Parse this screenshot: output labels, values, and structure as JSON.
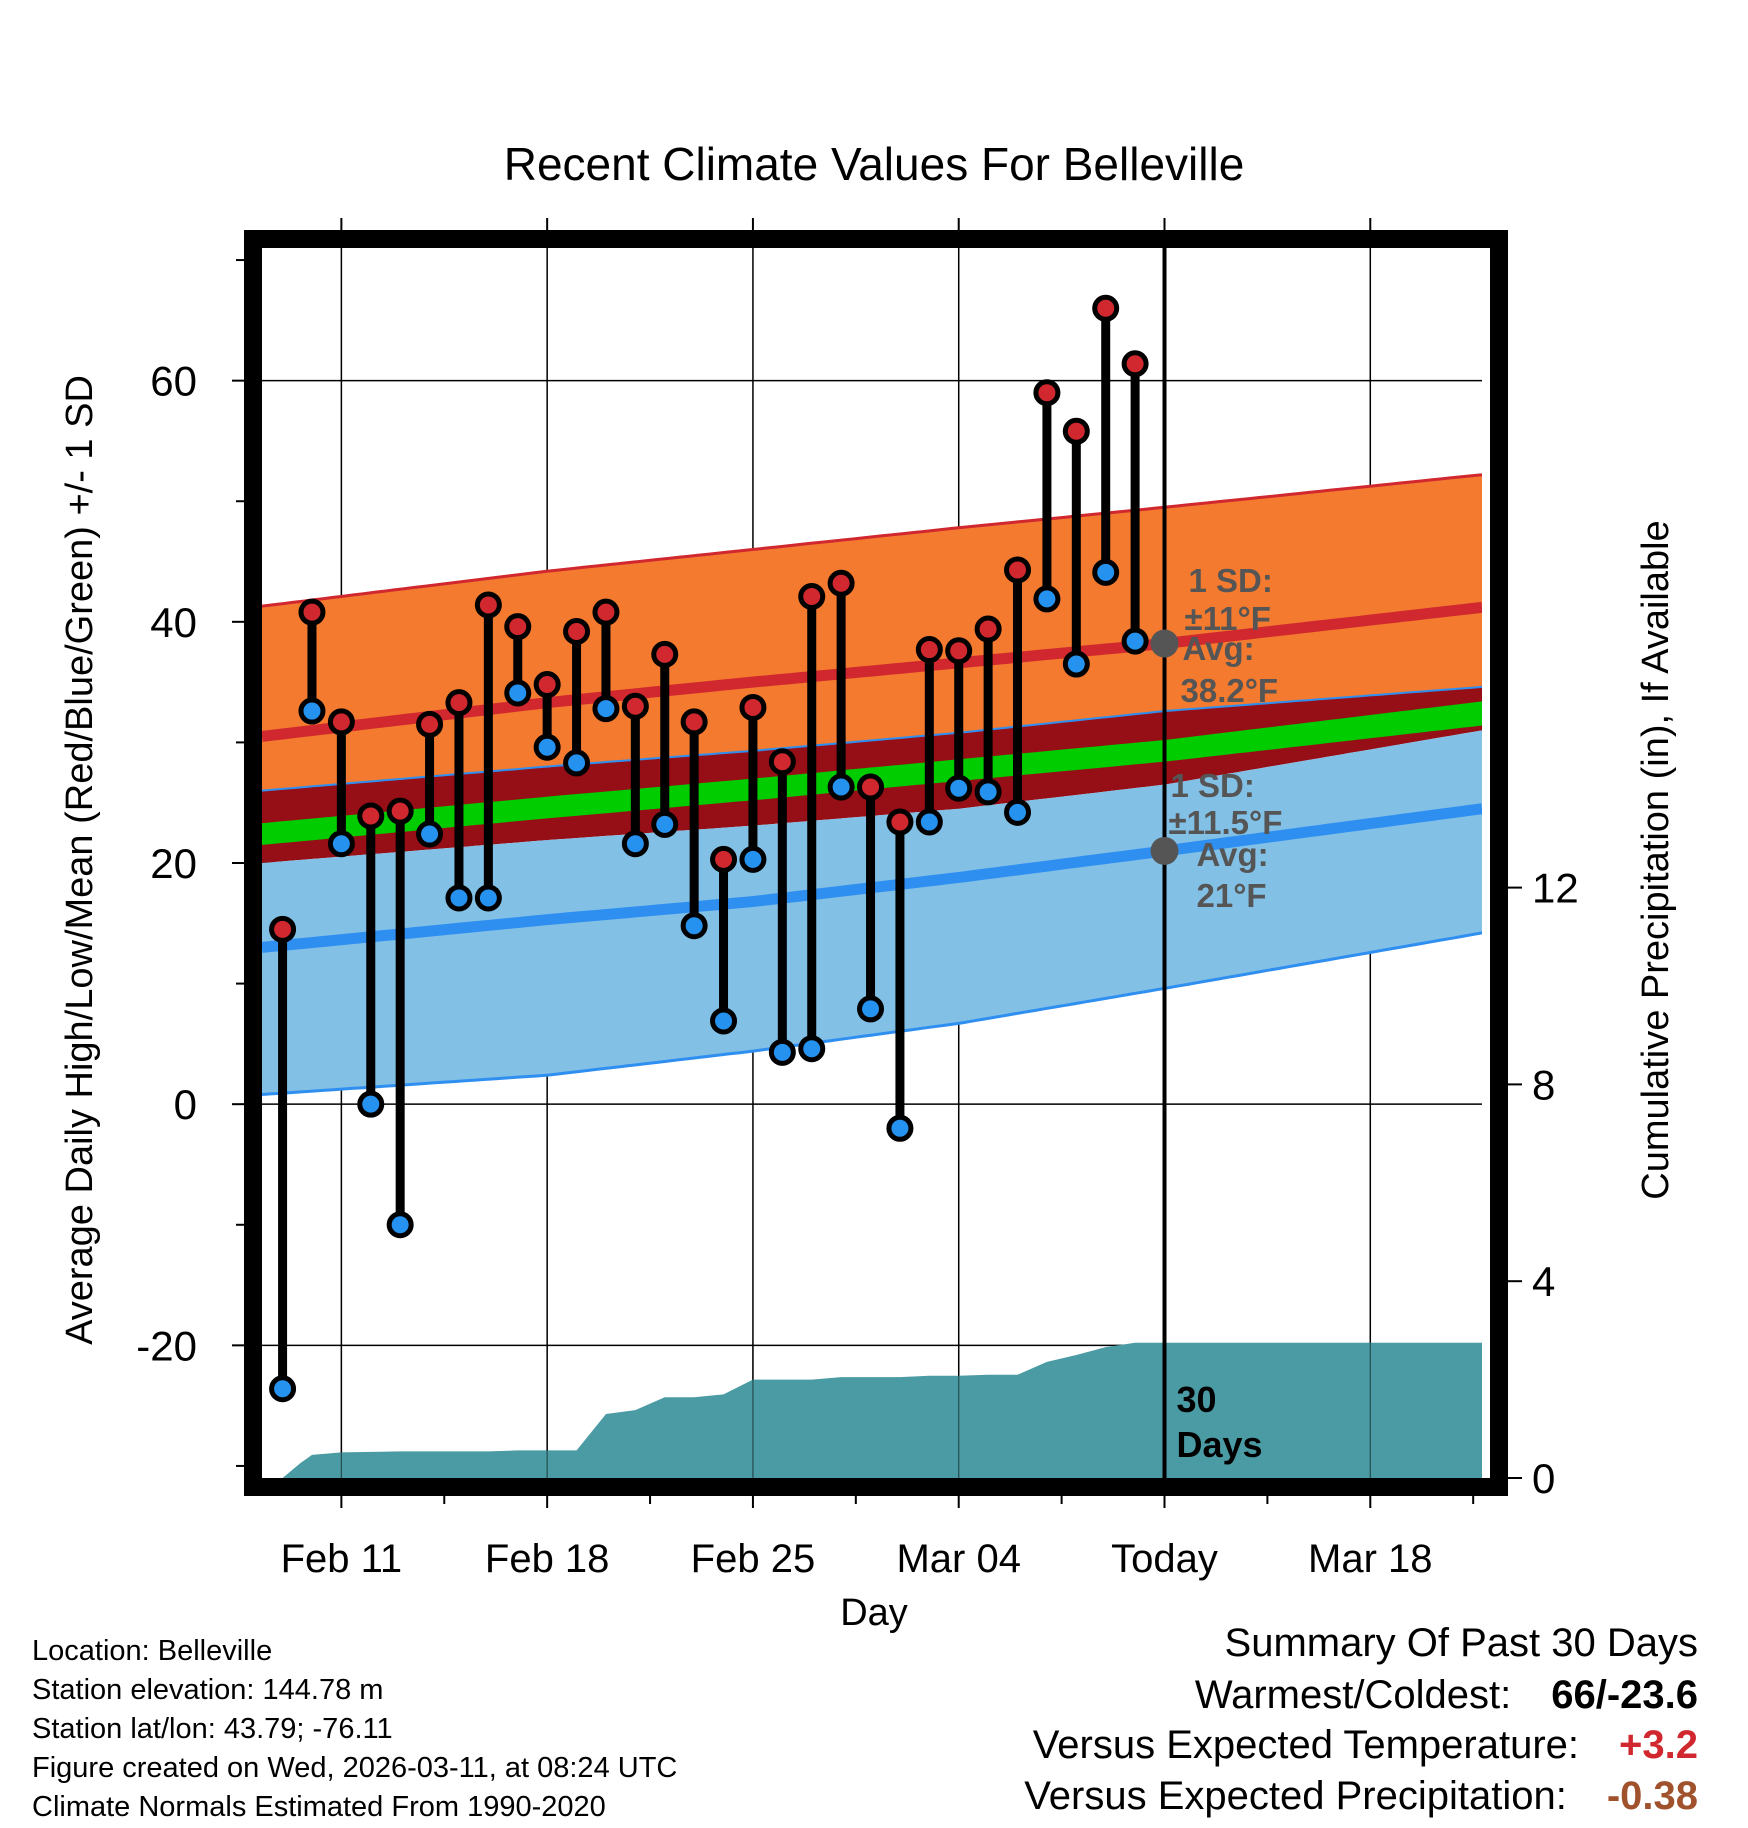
{
  "chart_data": {
    "type": "line",
    "title": "Recent Climate Values For Belleville",
    "xlabel": "Day",
    "ylabel": "Average Daily High/Low/Mean (Red/Blue/Green) +/- 1 SD",
    "y2label": "Cumulative Precipitation (in), If Available",
    "xlim": [
      -2.7,
      38.8
    ],
    "ylim": [
      -31,
      71
    ],
    "y2lim": [
      0,
      25
    ],
    "x_ticks": [
      {
        "x": 0,
        "label": "Feb 11"
      },
      {
        "x": 7,
        "label": "Feb 18"
      },
      {
        "x": 14,
        "label": "Feb 25"
      },
      {
        "x": 21,
        "label": "Mar 04"
      },
      {
        "x": 28,
        "label": "Today"
      },
      {
        "x": 35,
        "label": "Mar 18"
      }
    ],
    "y_ticks": [
      -20,
      0,
      20,
      40,
      60
    ],
    "y2_ticks": [
      0,
      4,
      8,
      12
    ],
    "grid": true,
    "today_x": 28,
    "today_label": "30 Days",
    "normals": {
      "x": [
        -2.7,
        7,
        14,
        21,
        28,
        38.8
      ],
      "high_upper": [
        41.3,
        44.2,
        46,
        47.8,
        49.5,
        52.2
      ],
      "high_mean": [
        30.5,
        33.3,
        35,
        36.6,
        38.2,
        41.2
      ],
      "high_lower": [
        26,
        28,
        29.3,
        30.8,
        32.6,
        34.6
      ],
      "mean_upper": [
        23.3,
        25.5,
        27,
        28.6,
        30.2,
        33.4
      ],
      "mean_lower": [
        21.5,
        23.7,
        25.2,
        26.8,
        28.4,
        31.4
      ],
      "low_upper": [
        20,
        21.9,
        23.1,
        24.5,
        26.5,
        31
      ],
      "low_mean": [
        13,
        15.3,
        16.8,
        18.8,
        21,
        24.5
      ],
      "low_lower": [
        0.8,
        2.4,
        4.4,
        6.7,
        9.6,
        14.2
      ]
    },
    "high_label": {
      "sd": "1 SD:",
      "sd_val": "±11°F",
      "avg": "Avg:",
      "avg_val": "38.2°F",
      "value": 38.2
    },
    "low_label": {
      "sd": "1 SD:",
      "sd_val": "±11.5°F",
      "avg": "Avg:",
      "avg_val": "21°F",
      "value": 21
    },
    "series": [
      {
        "name": "High",
        "x": [
          -2,
          -1,
          0,
          1,
          2,
          3,
          4,
          5,
          6,
          7,
          8,
          9,
          10,
          11,
          12,
          13,
          14,
          15,
          16,
          17,
          18,
          19,
          20,
          21,
          22,
          23,
          24,
          25,
          26,
          27
        ],
        "values": [
          14.5,
          40.8,
          31.7,
          23.9,
          24.3,
          31.5,
          33.3,
          41.4,
          39.6,
          34.8,
          39.2,
          40.8,
          33,
          37.3,
          31.7,
          20.3,
          32.9,
          28.4,
          42.1,
          43.2,
          26.3,
          23.4,
          37.7,
          37.6,
          39.4,
          44.3,
          59,
          55.8,
          66,
          61.4
        ]
      },
      {
        "name": "Low",
        "x": [
          -2,
          -1,
          0,
          1,
          2,
          3,
          4,
          5,
          6,
          7,
          8,
          9,
          10,
          11,
          12,
          13,
          14,
          15,
          16,
          17,
          18,
          19,
          20,
          21,
          22,
          23,
          24,
          25,
          26,
          27
        ],
        "values": [
          -23.6,
          32.6,
          21.6,
          0,
          -10,
          22.4,
          17.1,
          17.1,
          34.1,
          29.6,
          28.3,
          32.8,
          21.6,
          23.2,
          14.8,
          6.9,
          20.3,
          4.3,
          4.6,
          26.3,
          7.9,
          -2,
          23.4,
          26.2,
          25.9,
          24.2,
          41.9,
          36.5,
          44.1,
          38.4
        ]
      },
      {
        "name": "Cumulative Precipitation",
        "x": [
          -2,
          -1.4,
          -1,
          0,
          1,
          2,
          3,
          4,
          5,
          6,
          7,
          8,
          9,
          10,
          11,
          12,
          13,
          14,
          15,
          16,
          17,
          18,
          19,
          20,
          21,
          22,
          23,
          24,
          25,
          26,
          27,
          28,
          38.8
        ],
        "values": [
          0,
          0.3,
          0.47,
          0.52,
          0.53,
          0.54,
          0.54,
          0.54,
          0.54,
          0.56,
          0.56,
          0.56,
          1.3,
          1.38,
          1.64,
          1.64,
          1.7,
          2.0,
          2.0,
          2.0,
          2.05,
          2.05,
          2.05,
          2.08,
          2.08,
          2.1,
          2.1,
          2.36,
          2.5,
          2.66,
          2.75,
          2.75,
          2.75
        ]
      }
    ]
  },
  "metadata": {
    "location": "Location: Belleville",
    "elevation": "Station elevation: 144.78 m",
    "latlon": "Station lat/lon: 43.79; -76.11",
    "created": "Figure created on Wed, 2026-03-11, at 08:24 UTC",
    "normals": "Climate Normals Estimated From 1990-2020"
  },
  "summary": {
    "title": "Summary Of Past 30 Days",
    "warmest_label": "Warmest/Coldest:",
    "warmest_value": "66/-23.6",
    "temp_label": "Versus Expected Temperature:",
    "temp_value": "+3.2",
    "precip_label": "Versus Expected Precipitation:",
    "precip_value": "-0.38"
  },
  "colors": {
    "high_band": "#f37a2e",
    "high_line": "#d0282e",
    "mean_band_outer": "#960f16",
    "mean_band": "#00cc00",
    "low_band": "#82c0e6",
    "low_line": "#2f8ff0",
    "precip": "#4a9ba3",
    "high_dot": "#d0282e",
    "low_dot": "#2592f0",
    "label_gray": "#555555",
    "temp_anom": "#d0282e",
    "precip_anom": "#a0522d"
  }
}
